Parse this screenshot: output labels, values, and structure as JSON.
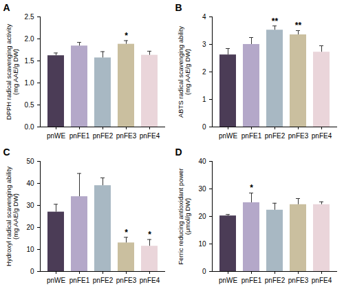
{
  "chart_data": [
    {
      "type": "bar",
      "title": "A",
      "ylabel": "DPPH radical scavenging activity\n(mg AAE/g DW)",
      "categories": [
        "pnWE",
        "pnFE1",
        "pnFE2",
        "pnFE3",
        "pnFE4"
      ],
      "values": [
        1.62,
        1.84,
        1.57,
        1.88,
        1.63
      ],
      "errors": [
        0.06,
        0.08,
        0.14,
        0.08,
        0.09
      ],
      "significance": [
        null,
        null,
        null,
        "*",
        null
      ],
      "colors": [
        "#4b3c56",
        "#b4a8c9",
        "#a8b8c3",
        "#cabf9f",
        "#ead5da"
      ],
      "ylim": [
        0,
        2.5
      ],
      "yticks": [
        {
          "value": 0,
          "label": "0.0"
        },
        {
          "value": 0.5,
          "label": "0.5"
        },
        {
          "value": 1,
          "label": "1.0"
        },
        {
          "value": 1.5,
          "label": "1.5"
        },
        {
          "value": 2,
          "label": "2.0"
        },
        {
          "value": 2.5,
          "label": "2.5"
        }
      ]
    },
    {
      "type": "bar",
      "title": "B",
      "ylabel": "ABTS radical scavenging ability\n(mg AAE/g DW)",
      "categories": [
        "pnWE",
        "pnFE1",
        "pnFE2",
        "pnFE3",
        "pnFE4"
      ],
      "values": [
        2.62,
        3.0,
        3.52,
        3.35,
        2.72
      ],
      "errors": [
        0.23,
        0.25,
        0.15,
        0.15,
        0.23
      ],
      "significance": [
        null,
        null,
        "**",
        "**",
        null
      ],
      "colors": [
        "#4b3c56",
        "#b4a8c9",
        "#a8b8c3",
        "#cabf9f",
        "#ead5da"
      ],
      "ylim": [
        0,
        4
      ],
      "yticks": [
        0,
        1,
        2,
        3,
        4
      ]
    },
    {
      "type": "bar",
      "title": "C",
      "ylabel": "Hydroxyl radical scavenging ability\n(mg AAE/g DW)",
      "categories": [
        "pnWE",
        "pnFE1",
        "pnFE2",
        "pnFE3",
        "pnFE4"
      ],
      "values": [
        27,
        34,
        39,
        13,
        11.5
      ],
      "errors": [
        3.5,
        10.5,
        3.5,
        2.5,
        3
      ],
      "significance": [
        null,
        null,
        null,
        "*",
        "*"
      ],
      "colors": [
        "#4b3c56",
        "#b4a8c9",
        "#a8b8c3",
        "#cabf9f",
        "#ead5da"
      ],
      "ylim": [
        0,
        50
      ],
      "yticks": [
        0,
        10,
        20,
        30,
        40,
        50
      ]
    },
    {
      "type": "bar",
      "title": "D",
      "ylabel": "Ferric reducing antioxidant power\n(μmol/g DW)",
      "categories": [
        "pnWE",
        "pnFE1",
        "pnFE2",
        "pnFE3",
        "pnFE4"
      ],
      "values": [
        20.2,
        25,
        22.3,
        24.3,
        24.3
      ],
      "errors": [
        0.5,
        3.5,
        2.5,
        2.2,
        1.0
      ],
      "significance": [
        null,
        "*",
        null,
        null,
        null
      ],
      "colors": [
        "#4b3c56",
        "#b4a8c9",
        "#a8b8c3",
        "#cabf9f",
        "#ead5da"
      ],
      "ylim": [
        0,
        40
      ],
      "yticks": [
        0,
        10,
        20,
        30,
        40
      ]
    }
  ]
}
